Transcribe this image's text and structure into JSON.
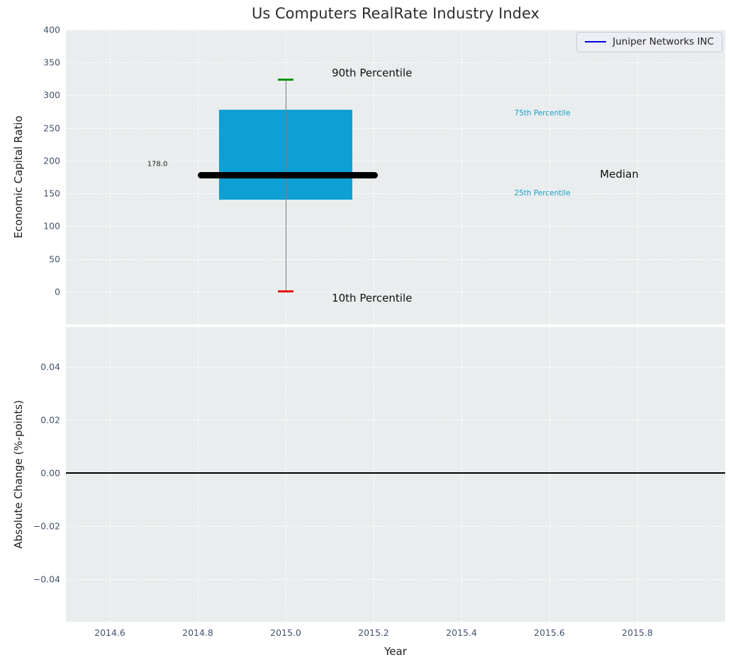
{
  "title": "Us Computers RealRate Industry Index",
  "legend": {
    "label": "Juniper Networks INC",
    "line_color": "#0000dd"
  },
  "colors": {
    "box_fill": "#0ea0d4",
    "whisker": "#7a7a7a",
    "cap_top": "#149414",
    "cap_bottom": "#e81212",
    "median_line": "#000000",
    "marker": "#0000ee",
    "zero_line": "#000000",
    "plot_background": "#e9edee",
    "gridline": "#ffffff",
    "tick_label": "#44536d",
    "accent_text": "#199fc6"
  },
  "chart_data": [
    {
      "type": "box",
      "title": "Us Computers RealRate Industry Index",
      "ylabel": "Economic Capital Ratio",
      "xlabel": "Year",
      "xlim": [
        2014.5,
        2016.0
      ],
      "ylim": [
        -50,
        400
      ],
      "grid": "white-dashed-major",
      "legend_position": "upper right",
      "xticks": {
        "values": [
          2014.6,
          2014.8,
          2015.0,
          2015.2,
          2015.4,
          2015.6,
          2015.8
        ],
        "labels": [
          "2014.6",
          "2014.8",
          "2015.0",
          "2015.2",
          "2015.4",
          "2015.6",
          "2015.8"
        ]
      },
      "yticks": {
        "values": [
          0,
          50,
          100,
          150,
          200,
          250,
          300,
          350,
          400
        ],
        "labels": [
          "0",
          "50",
          "100",
          "150",
          "200",
          "250",
          "300",
          "350",
          "400"
        ]
      },
      "box": {
        "x": 2015.0,
        "box_halfwidth": 0.1515,
        "cap_halfwidth": 0.0177,
        "p10": 2,
        "p25": 140,
        "median": 178,
        "p75": 278,
        "p90": 325,
        "median_label": "178.0",
        "median_line_x0": 2014.8,
        "median_line_x1": 2015.21
      },
      "series": [
        {
          "name": "Juniper Networks INC",
          "points": [
            [
              2015.0,
              178.0
            ]
          ],
          "color": "#0000ee"
        }
      ],
      "annotations": [
        {
          "text": "90th Percentile",
          "x": 2015.105,
          "y": 334,
          "kind": "callout",
          "color": "#111111"
        },
        {
          "text": "10th Percentile",
          "x": 2015.105,
          "y": -10,
          "kind": "callout",
          "color": "#111111"
        },
        {
          "text": "75th Percentile",
          "x": 2015.52,
          "y": 272,
          "kind": "small",
          "color": "#199fc6"
        },
        {
          "text": "25th Percentile",
          "x": 2015.52,
          "y": 150,
          "kind": "small",
          "color": "#199fc6"
        },
        {
          "text": "Median",
          "x": 2015.715,
          "y": 179,
          "kind": "callout",
          "color": "#111111"
        },
        {
          "text": "178.0",
          "x": 2014.685,
          "y": 194,
          "kind": "value",
          "color": "#222222"
        }
      ]
    },
    {
      "type": "line",
      "ylabel": "Absolute Change (%-points)",
      "xlabel": "Year",
      "xlim": [
        2014.5,
        2016.0
      ],
      "ylim": [
        -0.056,
        0.0549
      ],
      "grid": "white-dashed-major",
      "yticks": {
        "values": [
          0.04,
          0.02,
          0.0,
          -0.02,
          -0.04
        ],
        "labels": [
          "0.04",
          "0.02",
          "0.00",
          "−0.02",
          "−0.04"
        ]
      },
      "zero_line": 0.0,
      "series": []
    }
  ]
}
